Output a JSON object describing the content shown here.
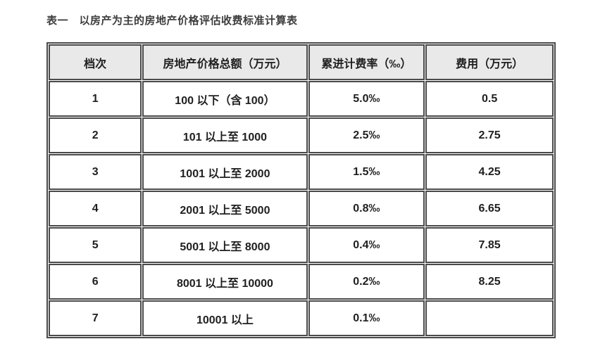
{
  "page": {
    "title": "表一　以房产为主的房地产价格评估收费标准计算表"
  },
  "table": {
    "headers": [
      "档次",
      "房地产价格总额（万元）",
      "累进计费率（‰）",
      "费用（万元）"
    ],
    "rows": [
      [
        "1",
        "100 以下（含 100）",
        "5.0‰",
        "0.5"
      ],
      [
        "2",
        "101 以上至 1000",
        "2.5‰",
        "2.75"
      ],
      [
        "3",
        "1001 以上至 2000",
        "1.5‰",
        "4.25"
      ],
      [
        "4",
        "2001 以上至 5000",
        "0.8‰",
        "6.65"
      ],
      [
        "5",
        "5001 以上至 8000",
        "0.4‰",
        "7.85"
      ],
      [
        "6",
        "8001 以上至 10000",
        "0.2‰",
        "8.25"
      ],
      [
        "7",
        "10001 以上",
        "0.1‰",
        ""
      ]
    ],
    "colors": {
      "border": "#4a4a4a",
      "header_bg": "#e9e9e9",
      "cell_text": "#1f1f1f",
      "title_text": "#3c3c3c"
    }
  }
}
